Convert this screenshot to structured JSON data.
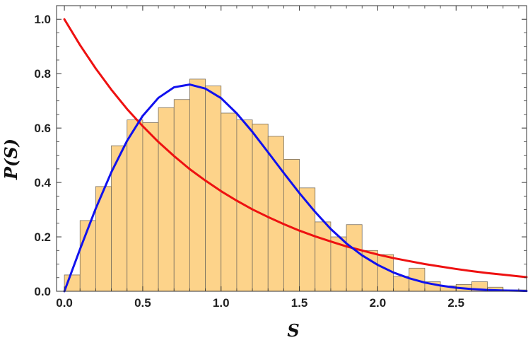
{
  "chart_data": {
    "type": "bar",
    "title": "",
    "xlabel": "S",
    "ylabel": "P(S)",
    "xlim": [
      -0.05,
      2.95
    ],
    "ylim": [
      0.0,
      1.05
    ],
    "grid": false,
    "x_ticks": [
      "0.0",
      "0.5",
      "1.0",
      "1.5",
      "2.0",
      "2.5"
    ],
    "y_ticks": [
      "0.0",
      "0.2",
      "0.4",
      "0.6",
      "0.8",
      "1.0"
    ],
    "histogram": {
      "bin_width": 0.1,
      "bin_starts": [
        0.0,
        0.1,
        0.2,
        0.3,
        0.4,
        0.5,
        0.6,
        0.7,
        0.8,
        0.9,
        1.0,
        1.1,
        1.2,
        1.3,
        1.4,
        1.5,
        1.6,
        1.7,
        1.8,
        1.9,
        2.0,
        2.1,
        2.2,
        2.3,
        2.4,
        2.5,
        2.6,
        2.7,
        2.8,
        2.9
      ],
      "values": [
        0.06,
        0.26,
        0.385,
        0.535,
        0.63,
        0.62,
        0.675,
        0.705,
        0.78,
        0.755,
        0.655,
        0.63,
        0.615,
        0.57,
        0.485,
        0.38,
        0.255,
        0.2,
        0.245,
        0.15,
        0.135,
        0.055,
        0.085,
        0.035,
        0.02,
        0.025,
        0.035,
        0.015,
        0.005,
        0.005
      ],
      "fill_color": "#fdd38a",
      "edge_color": "#7a7060"
    },
    "series": [
      {
        "kind": "line",
        "color": "#ee1111",
        "x": [
          0.0,
          0.1,
          0.2,
          0.3,
          0.4,
          0.5,
          0.6,
          0.7,
          0.8,
          0.9,
          1.0,
          1.1,
          1.2,
          1.3,
          1.4,
          1.5,
          1.6,
          1.7,
          1.8,
          1.9,
          2.0,
          2.1,
          2.2,
          2.3,
          2.4,
          2.5,
          2.6,
          2.7,
          2.8,
          2.9,
          2.95
        ],
        "y": [
          1.0,
          0.905,
          0.819,
          0.741,
          0.67,
          0.607,
          0.549,
          0.497,
          0.449,
          0.407,
          0.368,
          0.333,
          0.301,
          0.273,
          0.247,
          0.223,
          0.202,
          0.183,
          0.165,
          0.15,
          0.135,
          0.122,
          0.111,
          0.1,
          0.091,
          0.082,
          0.074,
          0.067,
          0.061,
          0.055,
          0.052
        ]
      },
      {
        "kind": "line",
        "color": "#1111ee",
        "x": [
          0.0,
          0.1,
          0.2,
          0.3,
          0.4,
          0.5,
          0.6,
          0.7,
          0.8,
          0.9,
          1.0,
          1.1,
          1.2,
          1.3,
          1.4,
          1.5,
          1.6,
          1.7,
          1.8,
          1.9,
          2.0,
          2.1,
          2.2,
          2.3,
          2.4,
          2.5,
          2.6,
          2.7,
          2.8,
          2.9,
          2.95
        ],
        "y": [
          0.0,
          0.155,
          0.304,
          0.438,
          0.553,
          0.645,
          0.711,
          0.75,
          0.76,
          0.745,
          0.71,
          0.654,
          0.586,
          0.511,
          0.435,
          0.361,
          0.292,
          0.229,
          0.176,
          0.132,
          0.097,
          0.069,
          0.048,
          0.032,
          0.021,
          0.013,
          0.008,
          0.005,
          0.003,
          0.002,
          0.001
        ]
      }
    ]
  }
}
